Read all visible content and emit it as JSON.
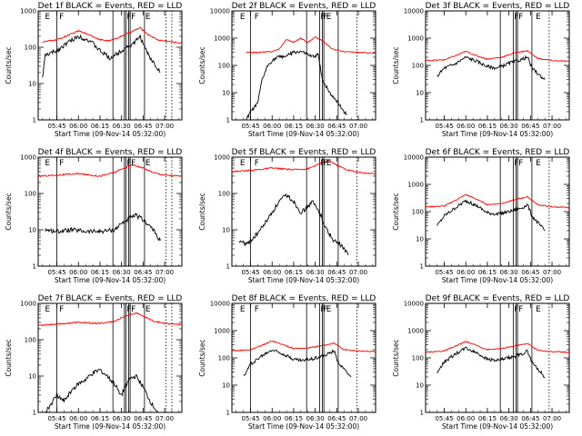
{
  "common": {
    "start_label": "Start Time (09-Nov-14 05:32:00)",
    "ylabel": "Counts/sec",
    "xticks": [
      "05:45",
      "06:00",
      "06:15",
      "06:30",
      "06:45",
      "07:00"
    ],
    "xlim": [
      "05:32",
      "07:12"
    ],
    "yscale": "log",
    "series_colors": {
      "events": "#000000",
      "lld": "#ff0000"
    }
  },
  "chart_data": [
    {
      "type": "line",
      "title": "Det 1f BLACK = Events, RED = LLD",
      "ylim": [
        1,
        1000
      ],
      "yticks": [
        "1",
        "10",
        "100",
        "1000"
      ],
      "series": [
        {
          "color": "#000000",
          "x": [
            "05:35",
            "05:37",
            "05:45",
            "05:52",
            "06:00",
            "06:08",
            "06:15",
            "06:22",
            "06:28",
            "06:33",
            "06:38",
            "06:43",
            "06:46",
            "06:50",
            "06:54",
            "06:57"
          ],
          "y": [
            15,
            60,
            80,
            130,
            200,
            150,
            80,
            50,
            70,
            100,
            120,
            200,
            100,
            50,
            30,
            20
          ]
        },
        {
          "color": "#ff0000",
          "x": [
            "05:35",
            "05:45",
            "05:55",
            "06:00",
            "06:08",
            "06:15",
            "06:22",
            "06:30",
            "06:38",
            "06:43",
            "06:48",
            "06:55",
            "07:05",
            "07:12"
          ],
          "y": [
            140,
            160,
            230,
            280,
            220,
            160,
            150,
            200,
            280,
            340,
            230,
            160,
            140,
            130
          ]
        }
      ],
      "vlines": [
        "05:45",
        "06:24",
        "06:32",
        "06:33",
        "06:35",
        "06:36",
        "06:46"
      ],
      "dotted_vlines": [
        "07:01",
        "07:05"
      ],
      "flags": [
        {
          "x": "05:36",
          "label": "E"
        },
        {
          "x": "05:46",
          "label": "F"
        },
        {
          "x": "06:33",
          "label": "F"
        },
        {
          "x": "06:36",
          "label": "F"
        },
        {
          "x": "06:46",
          "label": "E"
        }
      ]
    },
    {
      "type": "line",
      "title": "Det 2f BLACK = Events, RED = LLD",
      "ylim": [
        1,
        10000
      ],
      "yticks": [
        "1",
        "10",
        "100",
        "1000",
        "10000"
      ],
      "series": [
        {
          "color": "#000000",
          "x": [
            "05:42",
            "05:45",
            "05:50",
            "05:53",
            "05:57",
            "06:00",
            "06:04",
            "06:10",
            "06:15",
            "06:20",
            "06:24",
            "06:28",
            "06:32",
            "06:35",
            "06:40",
            "06:45",
            "06:50",
            "06:52"
          ],
          "y": [
            1,
            2,
            4,
            30,
            100,
            150,
            200,
            220,
            300,
            320,
            260,
            200,
            250,
            30,
            10,
            5,
            2,
            1.5
          ]
        },
        {
          "color": "#ff0000",
          "x": [
            "05:42",
            "05:50",
            "06:00",
            "06:05",
            "06:10",
            "06:15",
            "06:20",
            "06:25",
            "06:30",
            "06:35",
            "06:42",
            "06:50",
            "07:00",
            "07:12"
          ],
          "y": [
            300,
            300,
            320,
            400,
            900,
            700,
            1000,
            700,
            1100,
            800,
            400,
            320,
            300,
            280
          ]
        }
      ],
      "vlines": [
        "05:45",
        "06:24",
        "06:33",
        "06:35",
        "06:36",
        "06:46"
      ],
      "dotted_vlines": [
        "06:59"
      ],
      "flags": [
        {
          "x": "05:37",
          "label": "E"
        },
        {
          "x": "05:47",
          "label": "F"
        },
        {
          "x": "06:33",
          "label": "F"
        },
        {
          "x": "06:35",
          "label": "F"
        },
        {
          "x": "06:37",
          "label": "E"
        }
      ]
    },
    {
      "type": "line",
      "title": "Det 3f BLACK = Events, RED = LLD",
      "ylim": [
        1,
        10000
      ],
      "yticks": [
        "1",
        "10",
        "100",
        "1000",
        "10000"
      ],
      "series": [
        {
          "color": "#000000",
          "x": [
            "05:40",
            "05:45",
            "05:52",
            "06:00",
            "06:08",
            "06:15",
            "06:22",
            "06:30",
            "06:38",
            "06:43",
            "06:46",
            "06:50",
            "06:55"
          ],
          "y": [
            40,
            80,
            110,
            200,
            140,
            90,
            80,
            120,
            160,
            200,
            80,
            50,
            30
          ]
        },
        {
          "color": "#ff0000",
          "x": [
            "05:32",
            "05:45",
            "05:55",
            "06:00",
            "06:08",
            "06:15",
            "06:25",
            "06:35",
            "06:43",
            "06:50",
            "07:00",
            "07:12"
          ],
          "y": [
            150,
            160,
            250,
            330,
            220,
            170,
            200,
            300,
            340,
            180,
            150,
            140
          ]
        }
      ],
      "vlines": [
        "06:24",
        "06:33",
        "06:35",
        "06:36",
        "06:46"
      ],
      "dotted_vlines": [
        "06:58"
      ],
      "flags": [
        {
          "x": "06:33",
          "label": "F"
        },
        {
          "x": "06:36",
          "label": "F"
        },
        {
          "x": "06:48",
          "label": "E"
        }
      ]
    },
    {
      "type": "line",
      "title": "Det 4f BLACK = Events, RED = LLD",
      "ylim": [
        1,
        1000
      ],
      "yticks": [
        "1",
        "10",
        "100",
        "1000"
      ],
      "series": [
        {
          "color": "#000000",
          "x": [
            "05:37",
            "05:45",
            "05:55",
            "06:05",
            "06:15",
            "06:25",
            "06:30",
            "06:35",
            "06:40",
            "06:44",
            "06:48",
            "06:52",
            "06:57"
          ],
          "y": [
            10,
            9,
            10,
            9,
            9,
            10,
            15,
            20,
            25,
            20,
            15,
            10,
            5
          ]
        },
        {
          "color": "#ff0000",
          "x": [
            "05:32",
            "05:45",
            "06:00",
            "06:15",
            "06:25",
            "06:32",
            "06:38",
            "06:45",
            "06:52",
            "07:00",
            "07:12"
          ],
          "y": [
            300,
            320,
            350,
            300,
            380,
            500,
            620,
            500,
            380,
            320,
            300
          ]
        }
      ],
      "vlines": [
        "05:45",
        "06:24",
        "06:32",
        "06:33",
        "06:35",
        "06:36",
        "06:46"
      ],
      "dotted_vlines": [
        "07:01",
        "07:05"
      ],
      "flags": [
        {
          "x": "05:36",
          "label": "E"
        },
        {
          "x": "05:46",
          "label": "F"
        },
        {
          "x": "06:33",
          "label": "F"
        },
        {
          "x": "06:36",
          "label": "F"
        },
        {
          "x": "06:46",
          "label": "E"
        }
      ]
    },
    {
      "type": "line",
      "title": "Det 5f BLACK = Events, RED = LLD",
      "ylim": [
        1,
        1000
      ],
      "yticks": [
        "1",
        "10",
        "100",
        "1000"
      ],
      "series": [
        {
          "color": "#000000",
          "x": [
            "05:37",
            "05:42",
            "05:45",
            "05:50",
            "05:55",
            "06:00",
            "06:05",
            "06:10",
            "06:15",
            "06:20",
            "06:24",
            "06:28",
            "06:33",
            "06:38",
            "06:43",
            "06:47",
            "06:50",
            "06:53"
          ],
          "y": [
            5,
            4,
            5,
            8,
            15,
            30,
            60,
            90,
            60,
            30,
            40,
            60,
            30,
            10,
            5,
            4,
            3,
            2
          ]
        },
        {
          "color": "#ff0000",
          "x": [
            "05:32",
            "05:45",
            "06:00",
            "06:15",
            "06:25",
            "06:33",
            "06:40",
            "06:45",
            "06:52",
            "07:00",
            "07:12"
          ],
          "y": [
            400,
            430,
            500,
            450,
            480,
            650,
            800,
            600,
            450,
            380,
            350
          ]
        }
      ],
      "vlines": [
        "05:45",
        "06:24",
        "06:33",
        "06:35",
        "06:36",
        "06:46"
      ],
      "dotted_vlines": [
        "06:59"
      ],
      "flags": [
        {
          "x": "05:37",
          "label": "E"
        },
        {
          "x": "05:47",
          "label": "F"
        },
        {
          "x": "06:33",
          "label": "F"
        },
        {
          "x": "06:35",
          "label": "F"
        },
        {
          "x": "06:37",
          "label": "E"
        }
      ]
    },
    {
      "type": "line",
      "title": "Det 6f BLACK = Events, RED = LLD",
      "ylim": [
        1,
        10000
      ],
      "yticks": [
        "1",
        "10",
        "100",
        "1000",
        "10000"
      ],
      "series": [
        {
          "color": "#000000",
          "x": [
            "05:40",
            "05:45",
            "05:52",
            "06:00",
            "06:08",
            "06:15",
            "06:22",
            "06:30",
            "06:38",
            "06:43",
            "06:46",
            "06:50",
            "06:55"
          ],
          "y": [
            30,
            70,
            130,
            250,
            160,
            90,
            80,
            100,
            130,
            180,
            70,
            40,
            20
          ]
        },
        {
          "color": "#ff0000",
          "x": [
            "05:32",
            "05:45",
            "05:55",
            "06:00",
            "06:08",
            "06:15",
            "06:25",
            "06:35",
            "06:43",
            "06:50",
            "07:00",
            "07:12"
          ],
          "y": [
            150,
            160,
            300,
            420,
            280,
            180,
            200,
            280,
            350,
            180,
            150,
            140
          ]
        }
      ],
      "vlines": [
        "06:24",
        "06:33",
        "06:35",
        "06:36",
        "06:46"
      ],
      "dotted_vlines": [
        "06:58"
      ],
      "flags": [
        {
          "x": "06:33",
          "label": "F"
        },
        {
          "x": "06:36",
          "label": "F"
        },
        {
          "x": "06:48",
          "label": "E"
        }
      ]
    },
    {
      "type": "line",
      "title": "Det 7f BLACK = Events, RED = LLD",
      "ylim": [
        1,
        1000
      ],
      "yticks": [
        "1",
        "10",
        "100",
        "1000"
      ],
      "series": [
        {
          "color": "#000000",
          "x": [
            "05:37",
            "05:42",
            "05:45",
            "05:50",
            "05:55",
            "06:00",
            "06:05",
            "06:10",
            "06:15",
            "06:20",
            "06:25",
            "06:30",
            "06:35",
            "06:40",
            "06:45",
            "06:50",
            "06:55"
          ],
          "y": [
            1,
            2,
            3,
            2,
            4,
            6,
            8,
            12,
            15,
            10,
            6,
            3,
            8,
            10,
            5,
            2,
            1
          ]
        },
        {
          "color": "#ff0000",
          "x": [
            "05:32",
            "05:45",
            "06:00",
            "06:15",
            "06:25",
            "06:33",
            "06:40",
            "06:45",
            "06:52",
            "07:00",
            "07:12"
          ],
          "y": [
            250,
            270,
            300,
            280,
            320,
            450,
            550,
            450,
            330,
            280,
            260
          ]
        }
      ],
      "vlines": [
        "05:45",
        "06:24",
        "06:32",
        "06:33",
        "06:35",
        "06:36",
        "06:46"
      ],
      "dotted_vlines": [
        "07:01",
        "07:05"
      ],
      "flags": [
        {
          "x": "05:36",
          "label": "E"
        },
        {
          "x": "05:46",
          "label": "F"
        },
        {
          "x": "06:33",
          "label": "F"
        },
        {
          "x": "06:36",
          "label": "F"
        },
        {
          "x": "06:46",
          "label": "E"
        }
      ]
    },
    {
      "type": "line",
      "title": "Det 8f BLACK = Events, RED = LLD",
      "ylim": [
        1,
        10000
      ],
      "yticks": [
        "1",
        "10",
        "100",
        "1000",
        "10000"
      ],
      "series": [
        {
          "color": "#000000",
          "x": [
            "05:40",
            "05:45",
            "05:52",
            "06:00",
            "06:08",
            "06:15",
            "06:22",
            "06:30",
            "06:38",
            "06:43",
            "06:46",
            "06:50",
            "06:55"
          ],
          "y": [
            20,
            60,
            110,
            200,
            140,
            90,
            80,
            100,
            130,
            180,
            70,
            40,
            20
          ]
        },
        {
          "color": "#ff0000",
          "x": [
            "05:32",
            "05:45",
            "05:55",
            "06:00",
            "06:08",
            "06:15",
            "06:25",
            "06:35",
            "06:43",
            "06:50",
            "07:00",
            "07:12"
          ],
          "y": [
            180,
            200,
            320,
            420,
            300,
            220,
            230,
            280,
            350,
            200,
            180,
            170
          ]
        }
      ],
      "vlines": [
        "05:45",
        "06:24",
        "06:33",
        "06:35",
        "06:36",
        "06:46"
      ],
      "dotted_vlines": [
        "06:59"
      ],
      "flags": [
        {
          "x": "05:37",
          "label": "E"
        },
        {
          "x": "05:47",
          "label": "F"
        },
        {
          "x": "06:33",
          "label": "F"
        },
        {
          "x": "06:35",
          "label": "F"
        },
        {
          "x": "06:37",
          "label": "E"
        }
      ]
    },
    {
      "type": "line",
      "title": "Det 9f BLACK = Events, RED = LLD",
      "ylim": [
        1,
        10000
      ],
      "yticks": [
        "1",
        "10",
        "100",
        "1000",
        "10000"
      ],
      "series": [
        {
          "color": "#000000",
          "x": [
            "05:40",
            "05:45",
            "05:52",
            "06:00",
            "06:08",
            "06:15",
            "06:22",
            "06:30",
            "06:38",
            "06:43",
            "06:46",
            "06:50",
            "06:55"
          ],
          "y": [
            30,
            70,
            130,
            230,
            150,
            90,
            80,
            100,
            130,
            180,
            70,
            40,
            20
          ]
        },
        {
          "color": "#ff0000",
          "x": [
            "05:32",
            "05:45",
            "05:55",
            "06:00",
            "06:08",
            "06:15",
            "06:25",
            "06:35",
            "06:43",
            "06:50",
            "07:00",
            "07:12"
          ],
          "y": [
            160,
            180,
            300,
            400,
            280,
            200,
            220,
            280,
            340,
            190,
            170,
            160
          ]
        }
      ],
      "vlines": [
        "06:24",
        "06:33",
        "06:35",
        "06:36",
        "06:46"
      ],
      "dotted_vlines": [
        "06:58"
      ],
      "flags": [
        {
          "x": "06:33",
          "label": "F"
        },
        {
          "x": "06:36",
          "label": "F"
        },
        {
          "x": "06:48",
          "label": "E"
        }
      ]
    }
  ]
}
